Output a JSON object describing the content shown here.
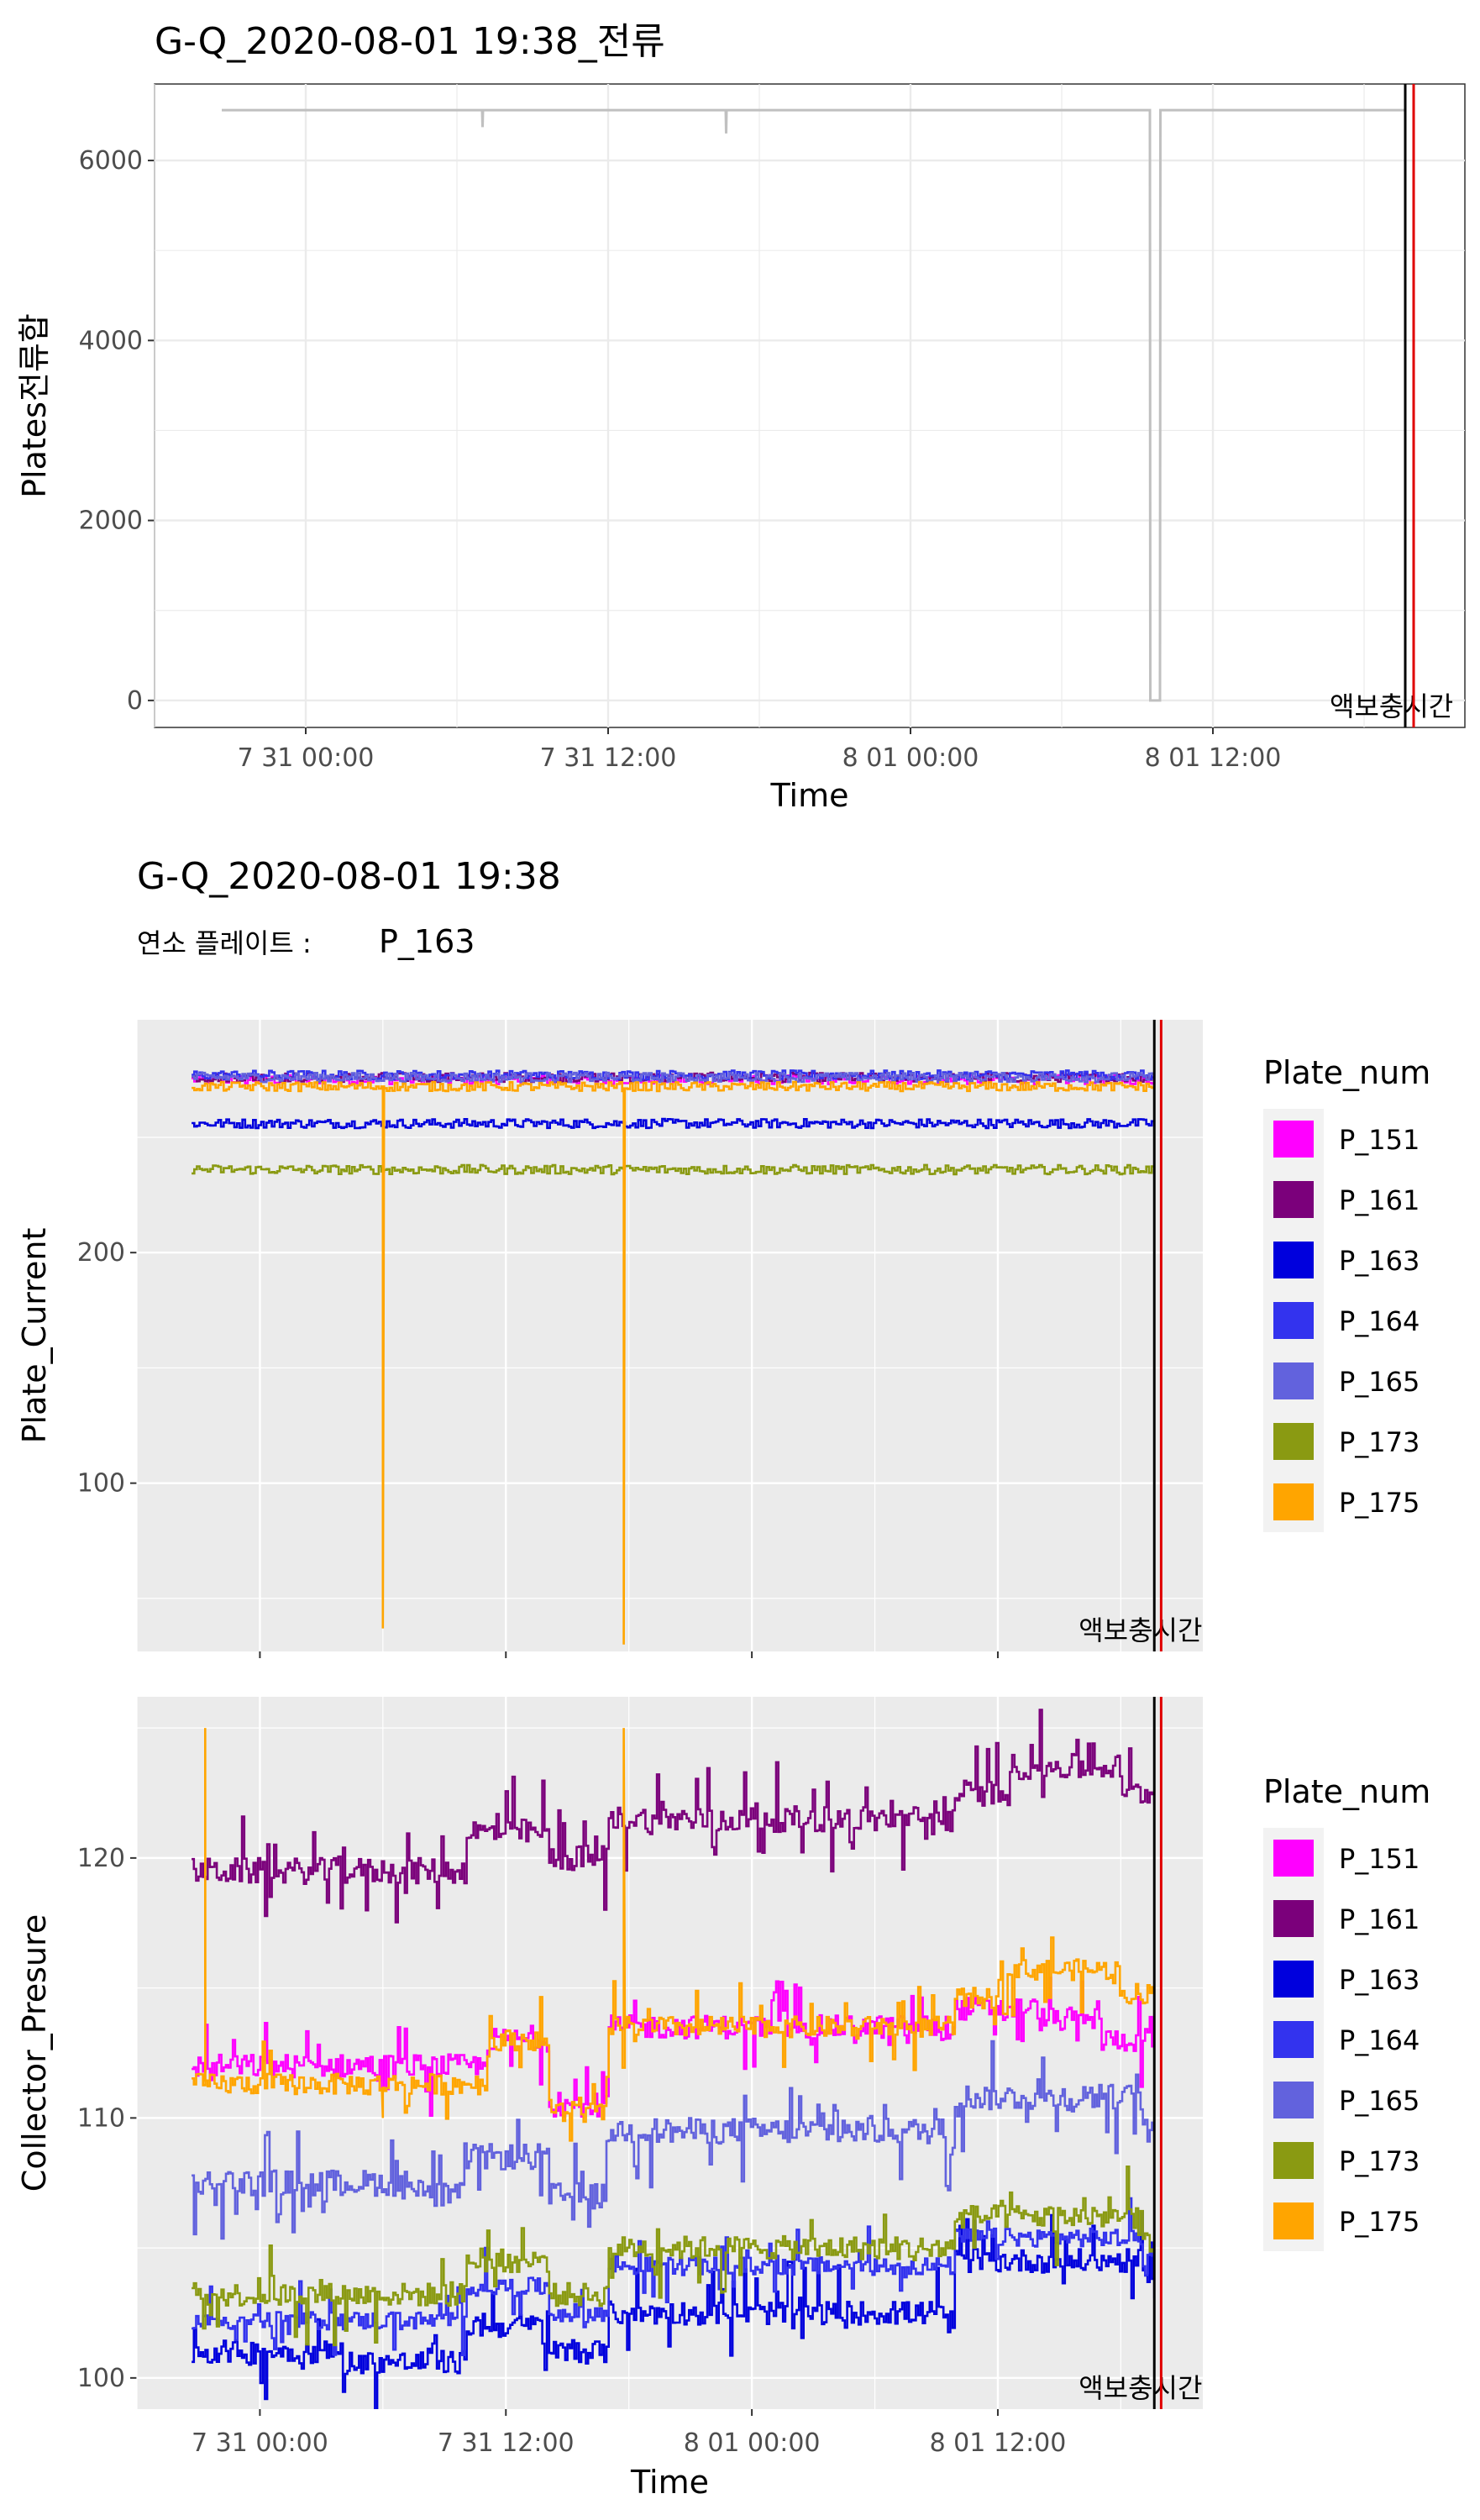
{
  "chart_data": [
    {
      "type": "line",
      "title": "G-Q_2020-08-01 19:38_전류",
      "xlabel": "Time",
      "ylabel": "Plates전류합",
      "x_ticks": [
        "7 31 00:00",
        "7 31 12:00",
        "8 01 00:00",
        "8 01 12:00"
      ],
      "xlim": [
        "2020-07-30 18:00",
        "2020-08-01 22:00"
      ],
      "ylim": [
        -300,
        6850
      ],
      "y_ticks": [
        0,
        2000,
        4000,
        6000
      ],
      "grid": true,
      "background": "#ffffff",
      "series": [
        {
          "color": "#c0c0c0",
          "points": [
            [
              "2020-07-30 20:40",
              6560
            ],
            [
              "2020-07-31 07:00",
              6560
            ],
            [
              "2020-07-31 07:01",
              6370
            ],
            [
              "2020-07-31 07:02",
              6560
            ],
            [
              "2020-07-31 16:40",
              6560
            ],
            [
              "2020-07-31 16:41",
              6300
            ],
            [
              "2020-07-31 16:42",
              6560
            ],
            [
              "2020-08-01 09:30",
              6560
            ],
            [
              "2020-08-01 09:31",
              0
            ],
            [
              "2020-08-01 09:54",
              0
            ],
            [
              "2020-08-01 09:55",
              6560
            ],
            [
              "2020-08-01 19:38",
              6560
            ]
          ]
        }
      ],
      "vlines": [
        {
          "x": "2020-08-01 19:38",
          "color": "#000000"
        },
        {
          "x": "2020-08-01 19:58",
          "color": "#e00000"
        }
      ],
      "annotation": {
        "text": "액보충시간",
        "x": "2020-08-01 19:38",
        "y": 0
      }
    },
    {
      "type": "line",
      "title": "G-Q_2020-08-01 19:38",
      "subtitle_label": "연소 플레이트 :",
      "subtitle_value": "P_163",
      "xlabel": "",
      "ylabel": "Plate_Current",
      "xlim": [
        "2020-07-30 18:00",
        "2020-08-01 22:00"
      ],
      "ylim": [
        27,
        301
      ],
      "y_ticks": [
        100,
        200
      ],
      "grid": true,
      "background": "#ebebeb",
      "legend_title": "Plate_num",
      "legend_position": "right",
      "series": [
        {
          "name": "P_151",
          "color": "#ff00ff",
          "base": 275,
          "jitter": 2,
          "spikes": []
        },
        {
          "name": "P_161",
          "color": "#7b007b",
          "base": 276,
          "jitter": 2,
          "spikes": []
        },
        {
          "name": "P_163",
          "color": "#0000dd",
          "base": 256,
          "jitter": 2,
          "spikes": []
        },
        {
          "name": "P_164",
          "color": "#3333ee",
          "base": 277,
          "jitter": 2,
          "spikes": []
        },
        {
          "name": "P_165",
          "color": "#6262dd",
          "base": 276,
          "jitter": 2,
          "spikes": []
        },
        {
          "name": "P_173",
          "color": "#8a9a12",
          "base": 236,
          "jitter": 2,
          "spikes": []
        },
        {
          "name": "P_175",
          "color": "#ffa500",
          "base": 272,
          "jitter": 2,
          "spikes": [
            [
              "2020-07-31 06:00",
              37
            ],
            [
              "2020-07-31 17:45",
              30
            ]
          ]
        }
      ],
      "vlines": [
        {
          "x": "2020-08-01 19:38",
          "color": "#000000"
        },
        {
          "x": "2020-08-01 19:58",
          "color": "#e00000"
        }
      ],
      "annotation": {
        "text": "액보충시간",
        "x": "2020-08-01 19:38",
        "y": 30
      }
    },
    {
      "type": "line",
      "title": "",
      "xlabel": "Time",
      "ylabel": "Collector_Presure",
      "x_ticks": [
        "7 31 00:00",
        "7 31 12:00",
        "8 01 00:00",
        "8 01 12:00"
      ],
      "xlim": [
        "2020-07-30 18:00",
        "2020-08-01 22:00"
      ],
      "ylim": [
        98.8,
        126.2
      ],
      "y_ticks": [
        100,
        110,
        120
      ],
      "grid": true,
      "background": "#ebebeb",
      "legend_title": "Plate_num",
      "legend_position": "right",
      "series": [
        {
          "name": "P_151",
          "color": "#ff00ff",
          "jitter": 0.9,
          "levels": [
            [
              "2020-07-30 20:40",
              112
            ],
            [
              "2020-07-31 11:00",
              113
            ],
            [
              "2020-07-31 14:00",
              110.5
            ],
            [
              "2020-07-31 17:00",
              113.5
            ],
            [
              "2020-08-01 09:30",
              113.5
            ],
            [
              "2020-08-01 09:50",
              114.2
            ],
            [
              "2020-08-01 14:00",
              113.8
            ],
            [
              "2020-08-01 17:00",
              113
            ]
          ]
        },
        {
          "name": "P_161",
          "color": "#7b007b",
          "jitter": 1.0,
          "levels": [
            [
              "2020-07-30 20:40",
              119.5
            ],
            [
              "2020-07-31 08:00",
              119.5
            ],
            [
              "2020-07-31 10:00",
              121
            ],
            [
              "2020-07-31 14:00",
              120
            ],
            [
              "2020-07-31 17:00",
              121.5
            ],
            [
              "2020-08-01 09:30",
              121.5
            ],
            [
              "2020-08-01 09:50",
              122.5
            ],
            [
              "2020-08-01 12:30",
              123.5
            ],
            [
              "2020-08-01 18:00",
              122.5
            ]
          ]
        },
        {
          "name": "P_163",
          "color": "#0000dd",
          "jitter": 0.9,
          "levels": [
            [
              "2020-07-30 20:40",
              101
            ],
            [
              "2020-07-31 04:00",
              100.6
            ],
            [
              "2020-07-31 10:00",
              102
            ],
            [
              "2020-07-31 14:00",
              101
            ],
            [
              "2020-07-31 17:00",
              102.5
            ],
            [
              "2020-08-01 09:30",
              102.2
            ],
            [
              "2020-08-01 09:50",
              104.5
            ],
            [
              "2020-08-01 19:00",
              103.5
            ]
          ]
        },
        {
          "name": "P_164",
          "color": "#3333ee",
          "jitter": 0.7,
          "levels": [
            [
              "2020-07-30 20:40",
              102.2
            ],
            [
              "2020-07-31 10:00",
              103.5
            ],
            [
              "2020-07-31 14:00",
              102.5
            ],
            [
              "2020-07-31 17:00",
              104.3
            ],
            [
              "2020-08-01 09:30",
              104.3
            ],
            [
              "2020-08-01 09:50",
              105.4
            ],
            [
              "2020-08-01 19:00",
              104.6
            ]
          ]
        },
        {
          "name": "P_165",
          "color": "#6262dd",
          "jitter": 1.0,
          "levels": [
            [
              "2020-07-30 20:40",
              107.5
            ],
            [
              "2020-07-31 08:00",
              107
            ],
            [
              "2020-07-31 10:00",
              108.5
            ],
            [
              "2020-07-31 14:00",
              107
            ],
            [
              "2020-07-31 17:00",
              109.5
            ],
            [
              "2020-08-01 09:30",
              109
            ],
            [
              "2020-08-01 09:50",
              110.8
            ],
            [
              "2020-08-01 19:00",
              109.5
            ]
          ]
        },
        {
          "name": "P_173",
          "color": "#8a9a12",
          "jitter": 0.9,
          "levels": [
            [
              "2020-07-30 20:40",
              103.2
            ],
            [
              "2020-07-31 10:00",
              104.5
            ],
            [
              "2020-07-31 14:00",
              103.2
            ],
            [
              "2020-07-31 17:00",
              105
            ],
            [
              "2020-08-01 09:30",
              105
            ],
            [
              "2020-08-01 09:50",
              106.2
            ],
            [
              "2020-08-01 19:00",
              105.3
            ]
          ]
        },
        {
          "name": "P_175",
          "color": "#ffa500",
          "jitter": 0.8,
          "levels": [
            [
              "2020-07-30 20:40",
              111.3
            ],
            [
              "2020-07-31 11:00",
              113
            ],
            [
              "2020-07-31 14:00",
              110.2
            ],
            [
              "2020-07-31 17:00",
              113.5
            ],
            [
              "2020-08-01 09:30",
              113.5
            ],
            [
              "2020-08-01 09:50",
              114.6
            ],
            [
              "2020-08-01 12:00",
              115.7
            ],
            [
              "2020-08-01 18:00",
              114.8
            ]
          ],
          "spikes": [
            [
              "2020-07-30 21:20",
              125
            ],
            [
              "2020-07-31 06:00",
              110
            ],
            [
              "2020-07-31 17:45",
              125
            ]
          ]
        }
      ],
      "vlines": [
        {
          "x": "2020-08-01 19:38",
          "color": "#000000"
        },
        {
          "x": "2020-08-01 19:58",
          "color": "#e00000"
        }
      ],
      "annotation": {
        "text": "액보충시간",
        "x": "2020-08-01 19:38",
        "y": 99
      }
    }
  ]
}
